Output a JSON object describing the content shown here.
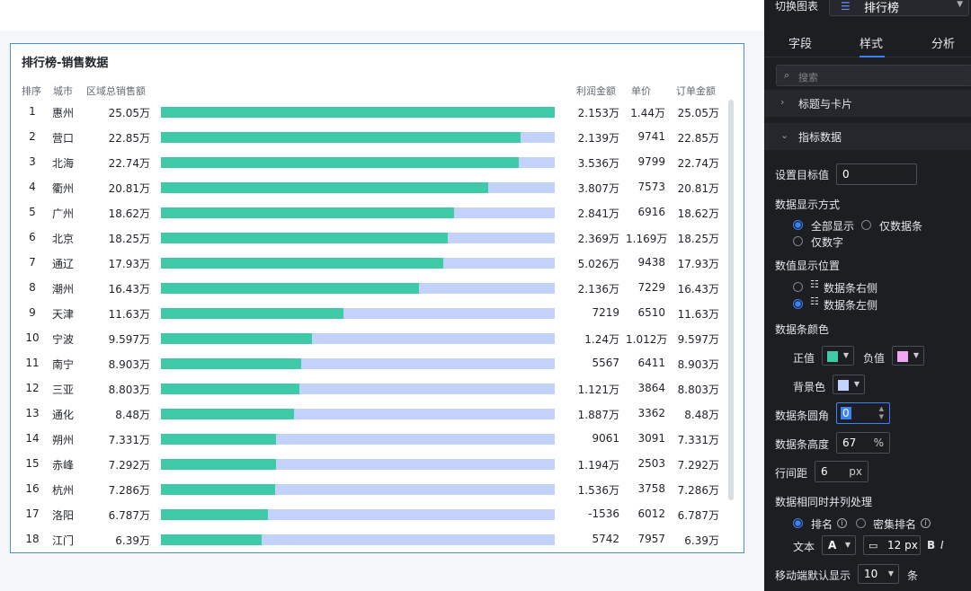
{
  "card": {
    "title": "排行榜-销售数据",
    "headers": {
      "rank": "排序",
      "city": "城市",
      "total": "区域总销售额",
      "profit": "利润金额",
      "price": "单价",
      "order": "订单金额"
    },
    "rows": [
      {
        "rank": "1",
        "city": "惠州",
        "total": "25.05万",
        "profit": "2.153万",
        "price": "1.44万",
        "order": "25.05万",
        "value": 25.05
      },
      {
        "rank": "2",
        "city": "营口",
        "total": "22.85万",
        "profit": "2.139万",
        "price": "9741",
        "order": "22.85万",
        "value": 22.85
      },
      {
        "rank": "3",
        "city": "北海",
        "total": "22.74万",
        "profit": "3.536万",
        "price": "9799",
        "order": "22.74万",
        "value": 22.74
      },
      {
        "rank": "4",
        "city": "衢州",
        "total": "20.81万",
        "profit": "3.807万",
        "price": "7573",
        "order": "20.81万",
        "value": 20.81
      },
      {
        "rank": "5",
        "city": "广州",
        "total": "18.62万",
        "profit": "2.841万",
        "price": "6916",
        "order": "18.62万",
        "value": 18.62
      },
      {
        "rank": "6",
        "city": "北京",
        "total": "18.25万",
        "profit": "2.369万",
        "price": "1.169万",
        "order": "18.25万",
        "value": 18.25
      },
      {
        "rank": "7",
        "city": "通辽",
        "total": "17.93万",
        "profit": "5.026万",
        "price": "9438",
        "order": "17.93万",
        "value": 17.93
      },
      {
        "rank": "8",
        "city": "潮州",
        "total": "16.43万",
        "profit": "2.136万",
        "price": "7229",
        "order": "16.43万",
        "value": 16.43
      },
      {
        "rank": "9",
        "city": "天津",
        "total": "11.63万",
        "profit": "7219",
        "price": "6510",
        "order": "11.63万",
        "value": 11.63
      },
      {
        "rank": "10",
        "city": "宁波",
        "total": "9.597万",
        "profit": "1.24万",
        "price": "1.012万",
        "order": "9.597万",
        "value": 9.597
      },
      {
        "rank": "11",
        "city": "南宁",
        "total": "8.903万",
        "profit": "5567",
        "price": "6411",
        "order": "8.903万",
        "value": 8.903
      },
      {
        "rank": "12",
        "city": "三亚",
        "total": "8.803万",
        "profit": "1.121万",
        "price": "3864",
        "order": "8.803万",
        "value": 8.803
      },
      {
        "rank": "13",
        "city": "通化",
        "total": "8.48万",
        "profit": "1.887万",
        "price": "3362",
        "order": "8.48万",
        "value": 8.48
      },
      {
        "rank": "14",
        "city": "朔州",
        "total": "7.331万",
        "profit": "9061",
        "price": "3091",
        "order": "7.331万",
        "value": 7.331
      },
      {
        "rank": "15",
        "city": "赤峰",
        "total": "7.292万",
        "profit": "1.194万",
        "price": "2503",
        "order": "7.292万",
        "value": 7.292
      },
      {
        "rank": "16",
        "city": "杭州",
        "total": "7.286万",
        "profit": "1.536万",
        "price": "3758",
        "order": "7.286万",
        "value": 7.286
      },
      {
        "rank": "17",
        "city": "洛阳",
        "total": "6.787万",
        "profit": "-1536",
        "price": "6012",
        "order": "6.787万",
        "value": 6.787
      },
      {
        "rank": "18",
        "city": "江门",
        "total": "6.39万",
        "profit": "5742",
        "price": "7957",
        "order": "6.39万",
        "value": 6.39
      }
    ],
    "max_value": 25.05,
    "colors": {
      "bar_positive": "#3ec9a7",
      "bar_background": "#c3d2fa",
      "card_border": "#4a90d9"
    }
  },
  "panel": {
    "chart_switch_label": "切换图表",
    "chart_select_value": "排行榜",
    "chart_select_icon": "ranking-list-icon",
    "tabs": [
      "字段",
      "样式",
      "分析"
    ],
    "active_tab": "样式",
    "search_placeholder": "搜索",
    "sections": {
      "title_card": "标题与卡片",
      "indicator": "指标数据"
    },
    "target_label": "设置目标值",
    "target_value": "0",
    "display_mode_label": "数据显示方式",
    "display_mode_options": [
      "全部显示",
      "仅数据条",
      "仅数字"
    ],
    "display_mode_selected": "全部显示",
    "value_position_label": "数值显示位置",
    "value_position_options": [
      "数据条右侧",
      "数据条左侧"
    ],
    "value_position_selected": "数据条左侧",
    "bar_color_label": "数据条颜色",
    "positive_label": "正值",
    "positive_color": "#3ec9a7",
    "negative_label": "负值",
    "negative_color": "#f0a6f5",
    "bg_color_label": "背景色",
    "bg_color": "#c3d2fa",
    "radius_label": "数据条圆角",
    "radius_value": "0",
    "height_label": "数据条高度",
    "height_value": "67",
    "height_unit": "%",
    "row_gap_label": "行间距",
    "row_gap_value": "6",
    "row_gap_unit": "px",
    "tie_label": "数据相同时并列处理",
    "tie_options": [
      "排名",
      "密集排名"
    ],
    "tie_selected": "排名",
    "text_label": "文本",
    "text_font_value": "A",
    "text_size_value": "12 px",
    "bold_label": "B",
    "italic_label": "I",
    "mobile_label": "移动端默认显示",
    "mobile_value": "10",
    "mobile_unit": "条"
  }
}
